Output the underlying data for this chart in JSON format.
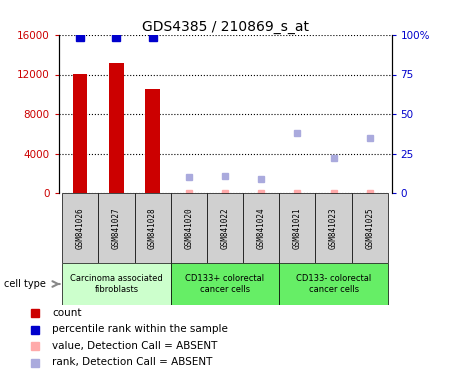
{
  "title": "GDS4385 / 210869_s_at",
  "samples": [
    "GSM841026",
    "GSM841027",
    "GSM841028",
    "GSM841020",
    "GSM841022",
    "GSM841024",
    "GSM841021",
    "GSM841023",
    "GSM841025"
  ],
  "count_values": [
    12100,
    13200,
    10500,
    null,
    null,
    null,
    null,
    null,
    null
  ],
  "count_absent": [
    null,
    null,
    null,
    50,
    50,
    50,
    50,
    50,
    50
  ],
  "percentile_rank": [
    99,
    99,
    99,
    null,
    null,
    null,
    null,
    null,
    null
  ],
  "rank_absent": [
    null,
    null,
    null,
    10,
    11,
    9,
    38,
    22,
    35
  ],
  "ylim_left": [
    0,
    16000
  ],
  "ylim_right": [
    0,
    100
  ],
  "yticks_left": [
    0,
    4000,
    8000,
    12000,
    16000
  ],
  "yticks_right": [
    0,
    25,
    50,
    75,
    100
  ],
  "yticklabels_left": [
    "0",
    "4000",
    "8000",
    "12000",
    "16000"
  ],
  "yticklabels_right": [
    "0",
    "25",
    "50",
    "75",
    "100%"
  ],
  "count_color": "#cc0000",
  "percentile_color": "#0000cc",
  "count_absent_color": "#ffaaaa",
  "rank_absent_color": "#aaaadd",
  "bar_width": 0.4,
  "group_spans": [
    {
      "start": 0,
      "end": 2,
      "label": "Carcinoma associated\nfibroblasts",
      "color": "#ccffcc"
    },
    {
      "start": 3,
      "end": 5,
      "label": "CD133+ colorectal\ncancer cells",
      "color": "#66ee66"
    },
    {
      "start": 6,
      "end": 8,
      "label": "CD133- colorectal\ncancer cells",
      "color": "#66ee66"
    }
  ],
  "legend_items": [
    {
      "color": "#cc0000",
      "label": "count"
    },
    {
      "color": "#0000cc",
      "label": "percentile rank within the sample"
    },
    {
      "color": "#ffaaaa",
      "label": "value, Detection Call = ABSENT"
    },
    {
      "color": "#aaaadd",
      "label": "rank, Detection Call = ABSENT"
    }
  ]
}
